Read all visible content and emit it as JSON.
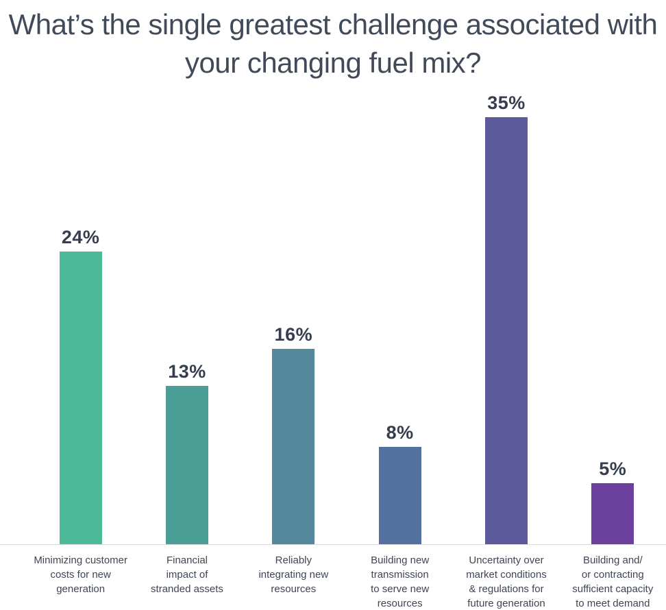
{
  "page": {
    "background": "#ffffff",
    "title_color": "#414a59"
  },
  "chart_data": {
    "type": "bar",
    "title": "What’s the single greatest challenge associated with your changing fuel mix?",
    "categories": [
      "Minimizing customer\ncosts for new\ngeneration",
      "Financial\nimpact of\nstranded assets",
      "Reliably\nintegrating new\nresources",
      "Building new\ntransmission\nto serve new\nresources",
      "Uncertainty over\nmarket conditions\n& regulations for\nfuture generation",
      "Building and/\nor contracting\nsufficient capacity\nto meet demand"
    ],
    "values": [
      24,
      13,
      16,
      8,
      35,
      5
    ],
    "value_labels": [
      "24%",
      "13%",
      "16%",
      "8%",
      "35%",
      "5%"
    ],
    "bar_colors": [
      "#4cb999",
      "#4a9e96",
      "#54899b",
      "#53719f",
      "#5d5a9c",
      "#6a3f9e"
    ],
    "xlabel": "",
    "ylabel": "",
    "ylim": [
      0,
      37
    ],
    "grid": false,
    "legend": "none",
    "baseline_color": "#d8d8d8",
    "value_label_color": "#353d4f",
    "category_label_color": "#3e4554"
  }
}
